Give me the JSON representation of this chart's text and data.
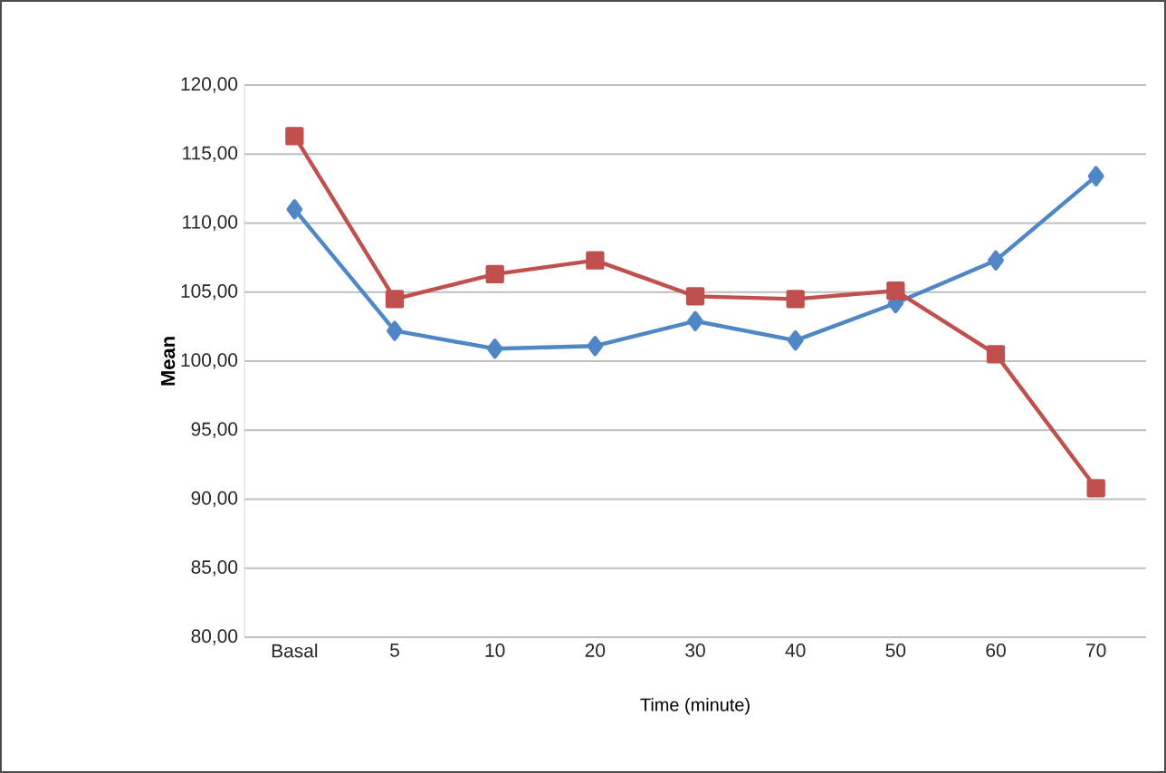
{
  "chart_data": {
    "type": "line",
    "xlabel": "Time (minute)",
    "ylabel": "Mean",
    "categories": [
      "Basal",
      "5",
      "10",
      "20",
      "30",
      "40",
      "50",
      "60",
      "70"
    ],
    "series": [
      {
        "color": "#4f86c6",
        "marker": "diamond",
        "values": [
          111.0,
          102.2,
          100.9,
          101.1,
          102.9,
          101.5,
          104.2,
          107.3,
          113.4
        ]
      },
      {
        "color": "#c0504d",
        "marker": "square",
        "values": [
          116.3,
          104.5,
          106.3,
          107.3,
          104.7,
          104.5,
          105.1,
          100.5,
          90.8
        ]
      }
    ],
    "ylim": [
      80,
      120
    ],
    "yticks": [
      {
        "value": 80,
        "label": "80,00"
      },
      {
        "value": 85,
        "label": "85,00"
      },
      {
        "value": 90,
        "label": "90,00"
      },
      {
        "value": 95,
        "label": "95,00"
      },
      {
        "value": 100,
        "label": "100,00"
      },
      {
        "value": 105,
        "label": "105,00"
      },
      {
        "value": 110,
        "label": "110,00"
      },
      {
        "value": 115,
        "label": "115,00"
      },
      {
        "value": 120,
        "label": "120,00"
      }
    ],
    "grid": "y",
    "line_style": "solid"
  }
}
